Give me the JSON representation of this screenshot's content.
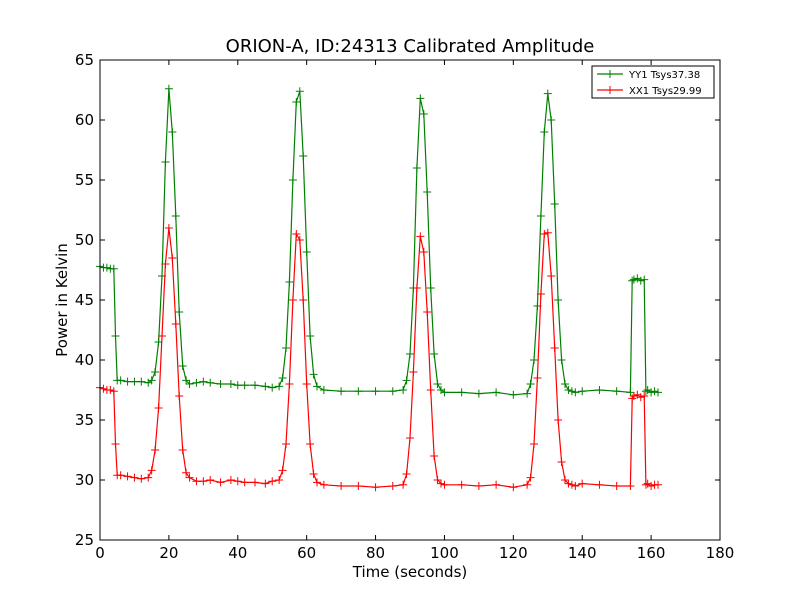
{
  "chart_data": {
    "type": "line",
    "title": "ORION-A, ID:24313 Calibrated Amplitude",
    "xlabel": "Time (seconds)",
    "ylabel": "Power in Kelvin",
    "xlim": [
      0,
      180
    ],
    "ylim": [
      25,
      65
    ],
    "xticks": [
      "0",
      "20",
      "40",
      "60",
      "80",
      "100",
      "120",
      "140",
      "160",
      "180"
    ],
    "yticks": [
      "25",
      "30",
      "35",
      "40",
      "45",
      "50",
      "55",
      "60",
      "65"
    ],
    "grid": false,
    "legend_position": "top-right",
    "marker": "+",
    "series": [
      {
        "name": "YY1 Tsys37.38",
        "color": "#008000",
        "x": [
          0,
          1,
          2,
          3,
          4,
          4.5,
          5,
          6,
          8,
          10,
          12,
          14,
          15,
          16,
          17,
          18,
          19,
          20,
          21,
          22,
          23,
          24,
          25,
          26,
          28,
          30,
          32,
          35,
          38,
          40,
          42,
          45,
          48,
          50,
          52,
          53,
          54,
          55,
          56,
          57,
          58,
          59,
          60,
          61,
          62,
          63,
          65,
          70,
          75,
          80,
          85,
          88,
          89,
          90,
          91,
          92,
          93,
          94,
          95,
          96,
          97,
          98,
          99,
          100,
          105,
          110,
          115,
          120,
          124,
          125,
          126,
          127,
          128,
          129,
          130,
          131,
          132,
          133,
          134,
          135,
          136,
          137,
          138,
          140,
          145,
          150,
          154,
          154.5,
          155,
          156,
          157,
          158,
          158.5,
          159,
          160,
          161,
          162
        ],
        "values": [
          47.8,
          47.7,
          47.7,
          47.6,
          47.6,
          42,
          38.3,
          38.3,
          38.2,
          38.2,
          38.2,
          38.1,
          38.3,
          39,
          41.5,
          47,
          56.5,
          62.6,
          59,
          52,
          44,
          39.5,
          38.3,
          38.0,
          38.1,
          38.2,
          38.1,
          38.0,
          38.0,
          37.9,
          37.9,
          37.9,
          37.8,
          37.7,
          37.8,
          38.5,
          41,
          46.5,
          55,
          61.5,
          62.4,
          57,
          49,
          42,
          38.8,
          37.8,
          37.5,
          37.4,
          37.4,
          37.4,
          37.4,
          37.5,
          38.3,
          40.5,
          46,
          56,
          61.8,
          60.5,
          54,
          46,
          40.5,
          38,
          37.5,
          37.3,
          37.3,
          37.2,
          37.3,
          37.1,
          37.2,
          38,
          40,
          44.5,
          52,
          59,
          62.2,
          60,
          53,
          45,
          40,
          38,
          37.5,
          37.4,
          37.3,
          37.4,
          37.5,
          37.4,
          37.3,
          46.6,
          46.7,
          46.8,
          46.6,
          46.7,
          37.4,
          37.5,
          37.3,
          37.4,
          37.3
        ]
      },
      {
        "name": "XX1 Tsys29.99",
        "color": "#ff0000",
        "x": [
          0,
          1,
          2,
          3,
          4,
          4.5,
          5,
          6,
          8,
          10,
          12,
          14,
          15,
          16,
          17,
          18,
          19,
          20,
          21,
          22,
          23,
          24,
          25,
          26,
          28,
          30,
          32,
          35,
          38,
          40,
          42,
          45,
          48,
          50,
          52,
          53,
          54,
          55,
          56,
          57,
          58,
          59,
          60,
          61,
          62,
          63,
          65,
          70,
          75,
          80,
          85,
          88,
          89,
          90,
          91,
          92,
          93,
          94,
          95,
          96,
          97,
          98,
          99,
          100,
          105,
          110,
          115,
          120,
          124,
          125,
          126,
          127,
          128,
          129,
          130,
          131,
          132,
          133,
          134,
          135,
          136,
          137,
          138,
          140,
          145,
          150,
          154,
          154.5,
          155,
          156,
          157,
          158,
          158.5,
          159,
          160,
          161,
          162
        ],
        "values": [
          37.7,
          37.6,
          37.5,
          37.5,
          37.4,
          33,
          30.4,
          30.4,
          30.3,
          30.2,
          30.1,
          30.2,
          30.8,
          32.5,
          36,
          42,
          48,
          51,
          48.5,
          43,
          37,
          32.5,
          30.6,
          30.2,
          29.9,
          29.9,
          30.0,
          29.8,
          30.0,
          29.9,
          29.8,
          29.8,
          29.7,
          29.9,
          30.0,
          30.8,
          33,
          38,
          45,
          50.5,
          50,
          45,
          38,
          33,
          30.5,
          29.8,
          29.6,
          29.5,
          29.5,
          29.4,
          29.5,
          29.6,
          30.5,
          33.5,
          39,
          46,
          50.3,
          49,
          44,
          37.5,
          32,
          30,
          29.7,
          29.6,
          29.6,
          29.5,
          29.6,
          29.4,
          29.6,
          30.2,
          33,
          38.5,
          45.5,
          50.5,
          50.6,
          47,
          41,
          35,
          31.5,
          30,
          29.7,
          29.6,
          29.5,
          29.7,
          29.6,
          29.5,
          29.5,
          36.8,
          37,
          37.1,
          36.9,
          37,
          29.6,
          29.7,
          29.5,
          29.6,
          29.6
        ]
      }
    ]
  }
}
